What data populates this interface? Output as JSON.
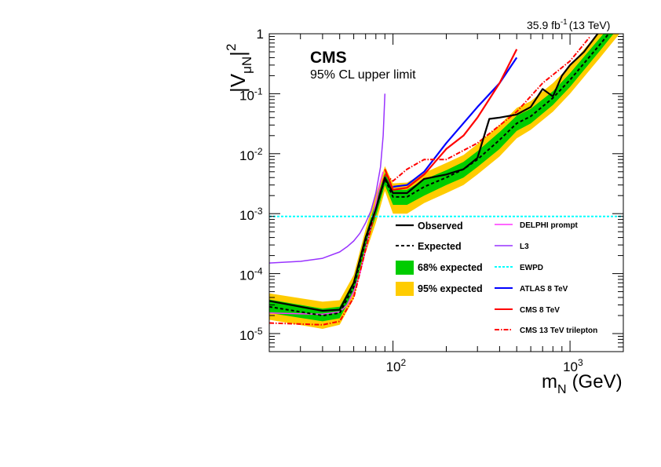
{
  "header": {
    "lumi": "35.9 fb",
    "lumi_sup": "-1",
    "energy": "(13 TeV)"
  },
  "labels": {
    "cms": "CMS",
    "subtitle": "95% CL upper limit",
    "ylabel_main": "|V",
    "ylabel_sub": "μN",
    "ylabel_end": "|",
    "ylabel_sup": "2",
    "xlabel_main": "m",
    "xlabel_sub": "N",
    "xlabel_unit": "(GeV)"
  },
  "colors": {
    "observed": "#000000",
    "expected": "#000000",
    "band68": "#00cc00",
    "band95": "#ffcc00",
    "delphi": "#ff33ff",
    "l3": "#9933ff",
    "ewpd": "#00ffff",
    "atlas8": "#0000ff",
    "cms8": "#ff0000",
    "cms13tri": "#ff0000"
  },
  "chart_data": {
    "type": "line",
    "xscale": "log",
    "yscale": "log",
    "xlim": [
      20,
      2000
    ],
    "ylim": [
      5e-06,
      1
    ],
    "x_ticks": [
      {
        "value": 100,
        "base": "10",
        "exp": "2"
      },
      {
        "value": 1000,
        "base": "10",
        "exp": "3"
      }
    ],
    "y_ticks": [
      {
        "value": 1,
        "base": "1",
        "exp": ""
      },
      {
        "value": 0.1,
        "base": "10",
        "exp": "-1"
      },
      {
        "value": 0.01,
        "base": "10",
        "exp": "-2"
      },
      {
        "value": 0.001,
        "base": "10",
        "exp": "-3"
      },
      {
        "value": 0.0001,
        "base": "10",
        "exp": "-4"
      },
      {
        "value": 1e-05,
        "base": "10",
        "exp": "-5"
      }
    ],
    "legend_position": "middle-right",
    "series": [
      {
        "name": "Observed",
        "x": [
          20,
          40,
          50,
          60,
          70,
          80,
          90,
          100,
          120,
          150,
          200,
          250,
          300,
          350,
          400,
          500,
          600,
          700,
          800,
          900,
          1000,
          1200,
          1500,
          2000
        ],
        "y": [
          3.5e-05,
          2.4e-05,
          2.5e-05,
          7e-05,
          0.0004,
          0.0012,
          0.004,
          0.0022,
          0.0022,
          0.0038,
          0.0045,
          0.0055,
          0.0085,
          0.038,
          0.04,
          0.045,
          0.06,
          0.12,
          0.09,
          0.2,
          0.3,
          0.5,
          1.2,
          2.5
        ]
      },
      {
        "name": "Expected",
        "x": [
          20,
          40,
          50,
          60,
          70,
          80,
          90,
          100,
          120,
          150,
          200,
          250,
          300,
          400,
          500,
          600,
          800,
          1000,
          1500,
          2000
        ],
        "y": [
          2.8e-05,
          2e-05,
          2.2e-05,
          6e-05,
          0.00035,
          0.0012,
          0.0038,
          0.0019,
          0.0019,
          0.0028,
          0.004,
          0.0055,
          0.008,
          0.017,
          0.032,
          0.042,
          0.085,
          0.17,
          0.7,
          2.0
        ]
      },
      {
        "name": "68% expected",
        "x": [
          20,
          40,
          50,
          60,
          70,
          80,
          90,
          100,
          120,
          150,
          200,
          250,
          300,
          400,
          500,
          600,
          800,
          1000,
          1500,
          2000
        ],
        "lower": [
          2.2e-05,
          1.6e-05,
          1.8e-05,
          4.8e-05,
          0.00028,
          0.0009,
          0.003,
          0.0014,
          0.0014,
          0.002,
          0.003,
          0.004,
          0.006,
          0.012,
          0.024,
          0.032,
          0.065,
          0.13,
          0.55,
          1.6
        ],
        "upper": [
          3.7e-05,
          2.6e-05,
          2.8e-05,
          7.5e-05,
          0.00044,
          0.0016,
          0.0048,
          0.0025,
          0.0025,
          0.0037,
          0.0053,
          0.0073,
          0.011,
          0.023,
          0.043,
          0.056,
          0.11,
          0.22,
          0.9,
          2.5
        ]
      },
      {
        "name": "95% expected",
        "x": [
          20,
          40,
          50,
          60,
          70,
          80,
          90,
          100,
          120,
          150,
          200,
          250,
          300,
          400,
          500,
          600,
          800,
          1000,
          1500,
          2000
        ],
        "lower": [
          1.7e-05,
          1.2e-05,
          1.4e-05,
          3.8e-05,
          0.00022,
          0.0007,
          0.0024,
          0.001,
          0.001,
          0.0015,
          0.0022,
          0.003,
          0.0045,
          0.009,
          0.018,
          0.025,
          0.05,
          0.1,
          0.42,
          1.2
        ],
        "upper": [
          4.7e-05,
          3.4e-05,
          3.6e-05,
          9.5e-05,
          0.00055,
          0.0021,
          0.0062,
          0.0032,
          0.0033,
          0.0048,
          0.007,
          0.0095,
          0.0145,
          0.03,
          0.058,
          0.075,
          0.15,
          0.29,
          1.2,
          3.2
        ]
      },
      {
        "name": "DELPHI prompt",
        "x": [
          20,
          40,
          50,
          55,
          60,
          65,
          70,
          75,
          80,
          85,
          88
        ],
        "y": [
          2.2e-05,
          2.1e-05,
          2.3e-05,
          3e-05,
          5e-05,
          0.0001,
          0.00025,
          0.0006,
          0.0015,
          0.0035,
          0.005
        ]
      },
      {
        "name": "L3",
        "x": [
          20,
          30,
          40,
          50,
          55,
          60,
          65,
          70,
          75,
          80,
          85,
          88,
          90
        ],
        "y": [
          0.00015,
          0.00016,
          0.00018,
          0.00023,
          0.00028,
          0.00035,
          0.00047,
          0.0007,
          0.0011,
          0.0022,
          0.006,
          0.02,
          0.1
        ]
      },
      {
        "name": "EWPD",
        "x": [
          20,
          2000
        ],
        "y": [
          0.0009,
          0.0009
        ]
      },
      {
        "name": "ATLAS 8 TeV",
        "x": [
          100,
          120,
          150,
          200,
          300,
          400,
          500
        ],
        "y": [
          0.0028,
          0.003,
          0.005,
          0.015,
          0.06,
          0.15,
          0.4
        ]
      },
      {
        "name": "CMS 8 TeV",
        "x": [
          90,
          100,
          120,
          150,
          200,
          250,
          300,
          400,
          500
        ],
        "y": [
          0.0055,
          0.0025,
          0.0027,
          0.0045,
          0.012,
          0.02,
          0.04,
          0.15,
          0.55
        ]
      },
      {
        "name": "CMS 13 TeV trilepton",
        "x": [
          20,
          40,
          50,
          60,
          70,
          80,
          90,
          100,
          120,
          150,
          200,
          300,
          500,
          700,
          1000,
          1300
        ],
        "y": [
          1.5e-05,
          1.4e-05,
          1.6e-05,
          4e-05,
          0.00025,
          0.0012,
          0.0045,
          0.0035,
          0.0055,
          0.008,
          0.008,
          0.015,
          0.05,
          0.15,
          0.35,
          0.9
        ]
      }
    ]
  }
}
